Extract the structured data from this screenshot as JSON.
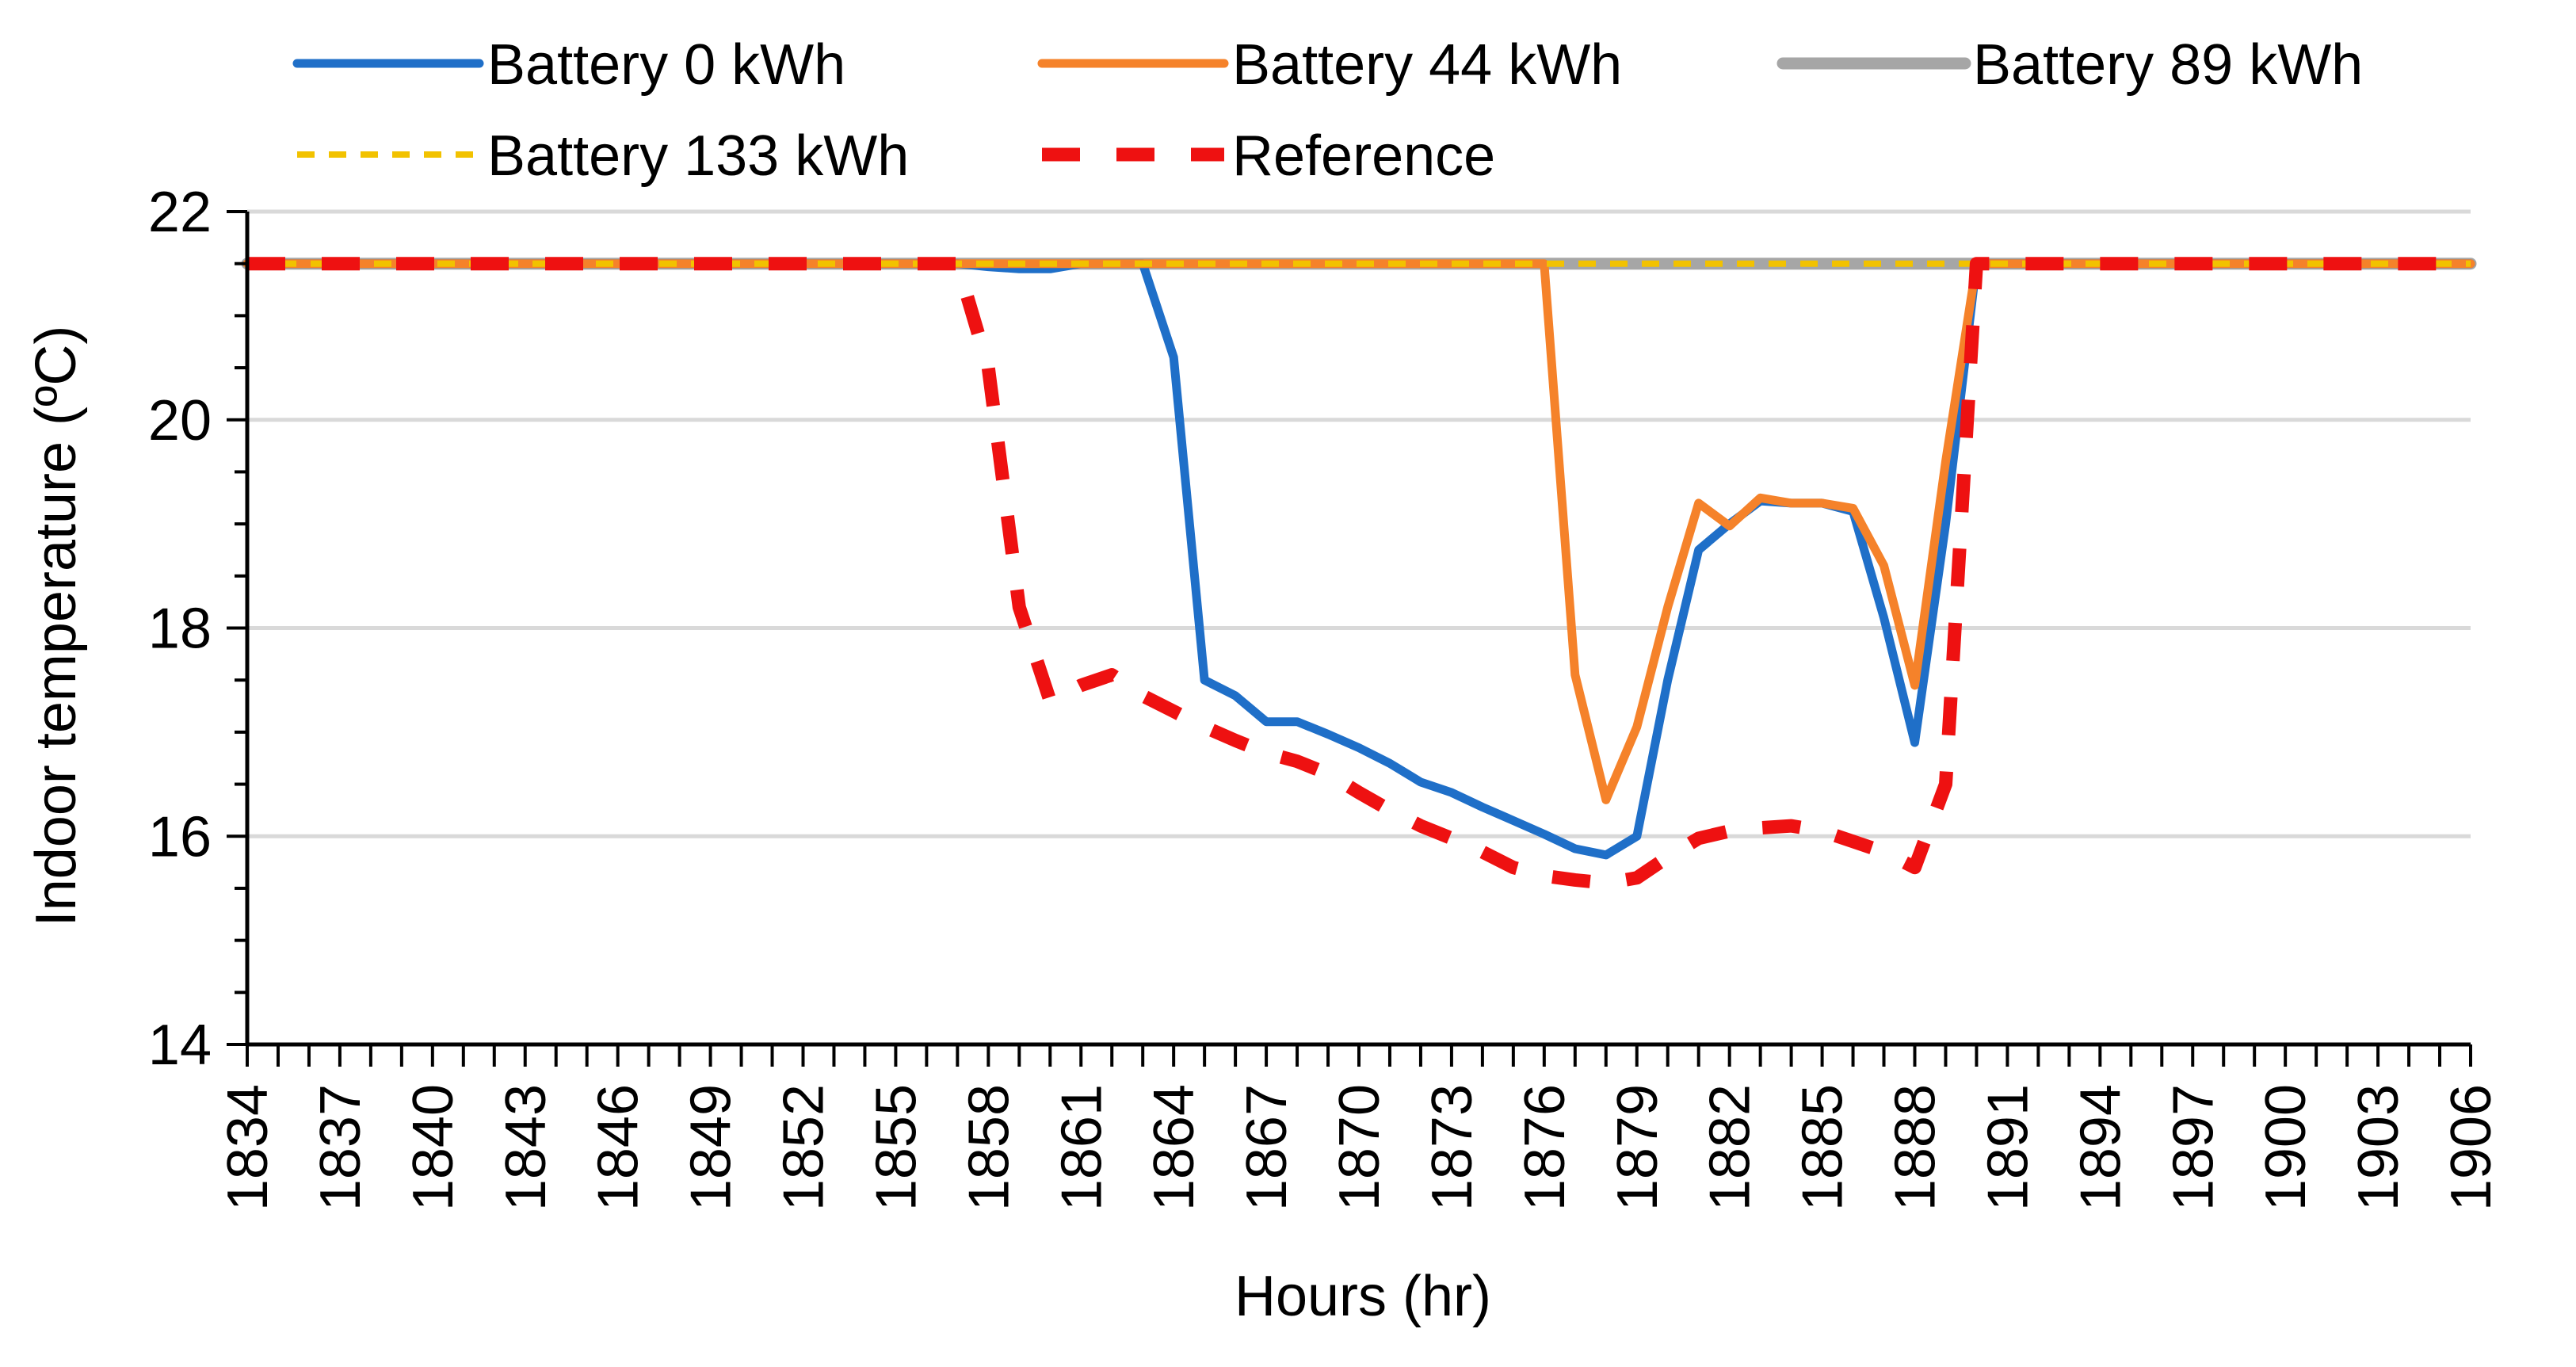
{
  "chart_data": {
    "type": "line",
    "title": "",
    "xlabel": "Hours (hr)",
    "ylabel": "Indoor temperature (ºC)",
    "ylim": [
      14,
      22
    ],
    "yticks": [
      "14",
      "16",
      "18",
      "20",
      "22"
    ],
    "xlim": [
      1834,
      1906
    ],
    "xtick_labels": [
      "1834",
      "1837",
      "1840",
      "1843",
      "1846",
      "1849",
      "1852",
      "1855",
      "1858",
      "1861",
      "1864",
      "1867",
      "1870",
      "1873",
      "1876",
      "1879",
      "1882",
      "1885",
      "1888",
      "1891",
      "1894",
      "1897",
      "1900",
      "1903",
      "1906"
    ],
    "grid": true,
    "legend_position": "top",
    "colors": {
      "battery_0": "#1f6fc8",
      "battery_44": "#f5822a",
      "battery_89": "#a6a6a6",
      "battery_133": "#f2c200",
      "reference": "#ee1111",
      "grid": "#d9d9d9",
      "axis": "#000000"
    },
    "series": [
      {
        "key": "battery_89",
        "name": "Battery 89 kWh",
        "style": "solid",
        "x": [
          1834,
          1906
        ],
        "values": [
          21.5,
          21.5
        ]
      },
      {
        "key": "battery_0",
        "name": "Battery 0 kWh",
        "style": "solid",
        "x": [
          1834,
          1857,
          1858,
          1859,
          1860,
          1861,
          1862,
          1863,
          1864,
          1865,
          1866,
          1867,
          1868,
          1869,
          1870,
          1871,
          1872,
          1873,
          1874,
          1875,
          1876,
          1877,
          1878,
          1879,
          1880,
          1881,
          1882,
          1883,
          1884,
          1885,
          1886,
          1887,
          1888,
          1889,
          1890,
          1906
        ],
        "values": [
          21.5,
          21.5,
          21.47,
          21.45,
          21.45,
          21.5,
          21.5,
          21.5,
          20.6,
          17.5,
          17.35,
          17.1,
          17.1,
          16.98,
          16.85,
          16.7,
          16.52,
          16.42,
          16.28,
          16.15,
          16.02,
          15.88,
          15.82,
          16.0,
          17.5,
          18.75,
          19.0,
          19.22,
          19.2,
          19.2,
          19.12,
          18.1,
          16.9,
          19.0,
          21.5,
          21.5
        ]
      },
      {
        "key": "battery_44",
        "name": "Battery 44 kWh",
        "style": "solid",
        "x": [
          1834,
          1876,
          1877,
          1878,
          1879,
          1880,
          1881,
          1882,
          1883,
          1884,
          1885,
          1886,
          1887,
          1888,
          1889,
          1890,
          1906
        ],
        "values": [
          21.5,
          21.5,
          17.55,
          16.35,
          17.05,
          18.2,
          19.2,
          18.98,
          19.25,
          19.2,
          19.2,
          19.15,
          18.6,
          17.45,
          19.6,
          21.5,
          21.5
        ]
      },
      {
        "key": "battery_133",
        "name": "Battery 133 kWh",
        "style": "dashed",
        "x": [
          1834,
          1906
        ],
        "values": [
          21.5,
          21.5
        ]
      },
      {
        "key": "reference",
        "name": "Reference",
        "style": "dashed-bold",
        "x": [
          1834,
          1857,
          1858,
          1859,
          1860,
          1861,
          1862,
          1863,
          1864,
          1865,
          1866,
          1867,
          1868,
          1869,
          1870,
          1871,
          1872,
          1873,
          1874,
          1875,
          1876,
          1877,
          1878,
          1879,
          1880,
          1881,
          1882,
          1883,
          1884,
          1885,
          1886,
          1887,
          1888,
          1889,
          1890,
          1906
        ],
        "values": [
          21.5,
          21.5,
          20.5,
          18.2,
          17.3,
          17.45,
          17.55,
          17.35,
          17.2,
          17.05,
          16.92,
          16.8,
          16.72,
          16.6,
          16.42,
          16.25,
          16.1,
          15.98,
          15.85,
          15.7,
          15.62,
          15.58,
          15.55,
          15.6,
          15.8,
          15.98,
          16.05,
          16.08,
          16.1,
          16.05,
          15.95,
          15.85,
          15.7,
          16.5,
          21.5,
          21.5
        ]
      }
    ],
    "legend_order": [
      "battery_0",
      "battery_44",
      "battery_89",
      "battery_133",
      "reference"
    ]
  }
}
